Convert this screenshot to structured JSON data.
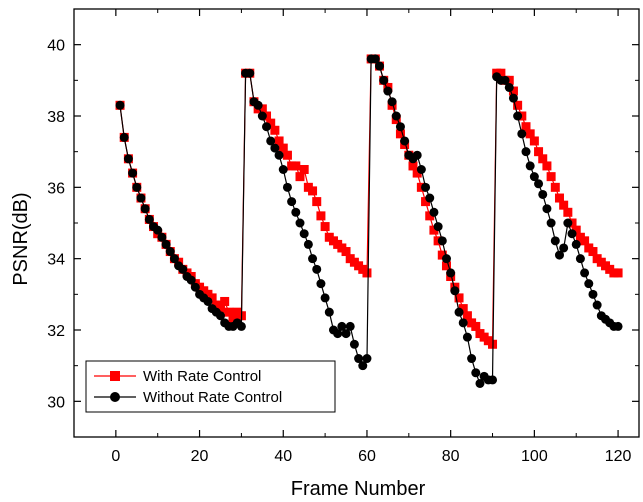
{
  "chart_data": {
    "type": "line",
    "xlabel": "Frame Number",
    "ylabel": "PSNR(dB)",
    "xlim": [
      -10,
      125
    ],
    "ylim": [
      29,
      41
    ],
    "xticks": [
      0,
      20,
      40,
      60,
      80,
      100,
      120
    ],
    "yticks": [
      30,
      32,
      34,
      36,
      38,
      40
    ],
    "legend_position": "bottom-left",
    "series": [
      {
        "name": "With Rate Control",
        "color": "#ff0000",
        "marker": "square",
        "x": [
          1,
          2,
          3,
          4,
          5,
          6,
          7,
          8,
          9,
          10,
          11,
          12,
          13,
          14,
          15,
          16,
          17,
          18,
          19,
          20,
          21,
          22,
          23,
          24,
          25,
          26,
          27,
          28,
          29,
          30,
          31,
          32,
          33,
          34,
          35,
          36,
          37,
          38,
          39,
          40,
          41,
          42,
          43,
          44,
          45,
          46,
          47,
          48,
          49,
          50,
          51,
          52,
          53,
          54,
          55,
          56,
          57,
          58,
          59,
          60,
          61,
          62,
          63,
          64,
          65,
          66,
          67,
          68,
          69,
          70,
          71,
          72,
          73,
          74,
          75,
          76,
          77,
          78,
          79,
          80,
          81,
          82,
          83,
          84,
          85,
          86,
          87,
          88,
          89,
          90,
          91,
          92,
          93,
          94,
          95,
          96,
          97,
          98,
          99,
          100,
          101,
          102,
          103,
          104,
          105,
          106,
          107,
          108,
          109,
          110,
          111,
          112,
          113,
          114,
          115,
          116,
          117,
          118,
          119,
          120
        ],
        "y": [
          38.3,
          37.4,
          36.8,
          36.4,
          36.0,
          35.7,
          35.4,
          35.1,
          34.9,
          34.7,
          34.6,
          34.4,
          34.2,
          34.0,
          33.9,
          33.7,
          33.6,
          33.5,
          33.3,
          33.2,
          33.1,
          33.0,
          32.9,
          32.7,
          32.6,
          32.8,
          32.5,
          32.3,
          32.5,
          32.4,
          39.2,
          39.2,
          38.4,
          38.2,
          38.2,
          38.0,
          37.8,
          37.6,
          37.3,
          37.1,
          36.9,
          36.6,
          36.6,
          36.3,
          36.5,
          36.0,
          35.9,
          35.6,
          35.2,
          34.9,
          34.6,
          34.5,
          34.4,
          34.3,
          34.2,
          34.0,
          33.9,
          33.8,
          33.7,
          33.6,
          39.6,
          39.6,
          39.4,
          39.0,
          38.8,
          38.3,
          37.9,
          37.5,
          37.2,
          36.9,
          36.6,
          36.4,
          36.0,
          35.6,
          35.2,
          34.8,
          34.5,
          34.1,
          33.8,
          33.5,
          33.2,
          32.9,
          32.6,
          32.4,
          32.2,
          32.1,
          31.9,
          31.8,
          31.7,
          31.6,
          39.2,
          39.2,
          39.0,
          39.0,
          38.7,
          38.3,
          38.0,
          37.7,
          37.5,
          37.3,
          37.0,
          36.8,
          36.6,
          36.3,
          36.0,
          35.7,
          35.5,
          35.3,
          35.0,
          34.8,
          34.6,
          34.5,
          34.3,
          34.2,
          34.0,
          33.9,
          33.8,
          33.7,
          33.6,
          33.6
        ]
      },
      {
        "name": "Without Rate Control",
        "color": "#000000",
        "marker": "circle",
        "x": [
          1,
          2,
          3,
          4,
          5,
          6,
          7,
          8,
          9,
          10,
          11,
          12,
          13,
          14,
          15,
          16,
          17,
          18,
          19,
          20,
          21,
          22,
          23,
          24,
          25,
          26,
          27,
          28,
          29,
          30,
          31,
          32,
          33,
          34,
          35,
          36,
          37,
          38,
          39,
          40,
          41,
          42,
          43,
          44,
          45,
          46,
          47,
          48,
          49,
          50,
          51,
          52,
          53,
          54,
          55,
          56,
          57,
          58,
          59,
          60,
          61,
          62,
          63,
          64,
          65,
          66,
          67,
          68,
          69,
          70,
          71,
          72,
          73,
          74,
          75,
          76,
          77,
          78,
          79,
          80,
          81,
          82,
          83,
          84,
          85,
          86,
          87,
          88,
          89,
          90,
          91,
          92,
          93,
          94,
          95,
          96,
          97,
          98,
          99,
          100,
          101,
          102,
          103,
          104,
          105,
          106,
          107,
          108,
          109,
          110,
          111,
          112,
          113,
          114,
          115,
          116,
          117,
          118,
          119,
          120
        ],
        "y": [
          38.3,
          37.4,
          36.8,
          36.4,
          36.0,
          35.7,
          35.4,
          35.1,
          34.9,
          34.8,
          34.6,
          34.4,
          34.2,
          34.0,
          33.8,
          33.7,
          33.5,
          33.4,
          33.2,
          33.0,
          32.9,
          32.8,
          32.6,
          32.5,
          32.4,
          32.2,
          32.1,
          32.1,
          32.2,
          32.1,
          39.2,
          39.2,
          38.4,
          38.3,
          38.0,
          37.7,
          37.3,
          37.1,
          36.9,
          36.5,
          36.0,
          35.6,
          35.3,
          35.0,
          34.7,
          34.4,
          34.0,
          33.7,
          33.3,
          32.9,
          32.5,
          32.0,
          31.9,
          32.1,
          31.9,
          32.1,
          31.6,
          31.2,
          31.0,
          31.2,
          39.6,
          39.6,
          39.4,
          39.0,
          38.7,
          38.4,
          38.0,
          37.7,
          37.3,
          36.9,
          36.8,
          36.9,
          36.5,
          36.0,
          35.7,
          35.3,
          34.9,
          34.5,
          34.0,
          33.6,
          33.1,
          32.5,
          32.2,
          31.8,
          31.2,
          30.8,
          30.5,
          30.7,
          30.6,
          30.6,
          39.1,
          39.0,
          39.0,
          38.8,
          38.5,
          38.0,
          37.5,
          37.0,
          36.6,
          36.3,
          36.1,
          35.8,
          35.4,
          35.0,
          34.5,
          34.1,
          34.3,
          35.0,
          34.7,
          34.4,
          34.0,
          33.6,
          33.3,
          33.0,
          32.7,
          32.4,
          32.3,
          32.2,
          32.1,
          32.1
        ]
      }
    ]
  }
}
